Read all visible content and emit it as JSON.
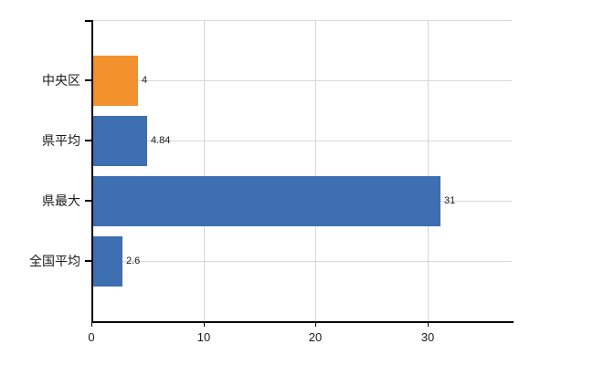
{
  "chart_data": {
    "type": "bar",
    "orientation": "horizontal",
    "title": "",
    "xlabel": "",
    "ylabel": "",
    "categories": [
      "中央区",
      "県平均",
      "県最大",
      "全国平均"
    ],
    "values": [
      4,
      4.84,
      31,
      2.6
    ],
    "value_labels": [
      "4",
      "4.84",
      "31",
      "2.6"
    ],
    "bar_colors": [
      "#f2912d",
      "#3d6fb2",
      "#3d6fb2",
      "#3d6fb2"
    ],
    "x_ticks": [
      0,
      10,
      20,
      30
    ],
    "x_tick_labels": [
      "0",
      "10",
      "20",
      "30"
    ],
    "xlim": [
      0,
      37.5
    ],
    "grid": true,
    "legend": "none",
    "background_color": "#ffffff",
    "axis_color": "#000000",
    "gridline_color_vertical": "#d6d6d6",
    "gridline_color_horizontal": "#d4dad4"
  }
}
